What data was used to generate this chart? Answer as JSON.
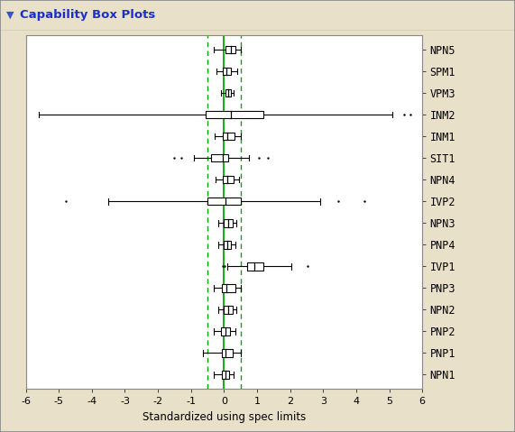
{
  "title": "Capability Box Plots",
  "xlabel": "Standardized using spec limits",
  "xlim": [
    -6,
    6
  ],
  "xticks": [
    -6,
    -5,
    -4,
    -3,
    -2,
    -1,
    0,
    1,
    2,
    3,
    4,
    5,
    6
  ],
  "vline_solid": 0.0,
  "vline_dashed": [
    -0.5,
    0.5
  ],
  "bg_color": "#e8e0c8",
  "plot_bg_color": "#ffffff",
  "title_color": "#1a2fcc",
  "categories_top_to_bottom": [
    "NPN5",
    "SPM1",
    "VPM3",
    "INM2",
    "INM1",
    "SIT1",
    "NPN4",
    "IVP2",
    "NPN3",
    "PNP4",
    "IVP1",
    "PNP3",
    "NPN2",
    "PNP2",
    "PNP1",
    "NPN1"
  ],
  "boxes": [
    {
      "whislo": -0.3,
      "q1": 0.05,
      "med": 0.2,
      "q3": 0.35,
      "whishi": 0.52,
      "fliers": []
    },
    {
      "whislo": -0.22,
      "q1": -0.05,
      "med": 0.08,
      "q3": 0.22,
      "whishi": 0.4,
      "fliers": []
    },
    {
      "whislo": -0.08,
      "q1": 0.05,
      "med": 0.12,
      "q3": 0.22,
      "whishi": 0.3,
      "fliers": []
    },
    {
      "whislo": -5.6,
      "q1": -0.55,
      "med": 0.2,
      "q3": 1.2,
      "whishi": 5.1,
      "fliers": [
        5.45,
        5.65
      ]
    },
    {
      "whislo": -0.28,
      "q1": -0.04,
      "med": 0.1,
      "q3": 0.32,
      "whishi": 0.52,
      "fliers": []
    },
    {
      "whislo": -0.9,
      "q1": -0.38,
      "med": -0.05,
      "q3": 0.12,
      "whishi": 0.75,
      "fliers": [
        -1.5,
        -1.28,
        1.05,
        1.32
      ]
    },
    {
      "whislo": -0.26,
      "q1": -0.04,
      "med": 0.1,
      "q3": 0.28,
      "whishi": 0.44,
      "fliers": []
    },
    {
      "whislo": -3.5,
      "q1": -0.5,
      "med": 0.05,
      "q3": 0.5,
      "whishi": 2.9,
      "fliers": [
        -4.8,
        3.45,
        4.25
      ]
    },
    {
      "whislo": -0.18,
      "q1": 0.0,
      "med": 0.13,
      "q3": 0.26,
      "whishi": 0.38,
      "fliers": []
    },
    {
      "whislo": -0.18,
      "q1": -0.02,
      "med": 0.1,
      "q3": 0.22,
      "whishi": 0.35,
      "fliers": []
    },
    {
      "whislo": 0.1,
      "q1": 0.7,
      "med": 0.92,
      "q3": 1.18,
      "whishi": 2.05,
      "fliers": [
        -0.05,
        0.02,
        2.52
      ]
    },
    {
      "whislo": -0.32,
      "q1": -0.07,
      "med": 0.08,
      "q3": 0.35,
      "whishi": 0.52,
      "fliers": []
    },
    {
      "whislo": -0.18,
      "q1": 0.0,
      "med": 0.13,
      "q3": 0.26,
      "whishi": 0.38,
      "fliers": []
    },
    {
      "whislo": -0.32,
      "q1": -0.09,
      "med": 0.04,
      "q3": 0.18,
      "whishi": 0.34,
      "fliers": []
    },
    {
      "whislo": -0.65,
      "q1": -0.07,
      "med": 0.04,
      "q3": 0.27,
      "whishi": 0.52,
      "fliers": []
    },
    {
      "whislo": -0.3,
      "q1": -0.07,
      "med": 0.04,
      "q3": 0.16,
      "whishi": 0.3,
      "fliers": []
    }
  ]
}
